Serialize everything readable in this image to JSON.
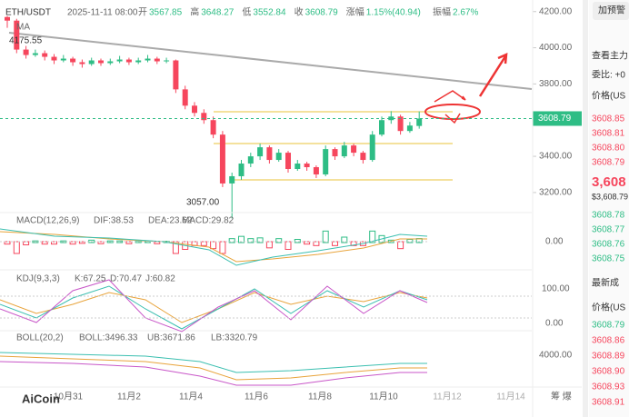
{
  "header": {
    "symbol": "ETH/USDT",
    "time": "2025-11-11 08:00",
    "fields": [
      [
        "开",
        "3567.85"
      ],
      [
        "高",
        "3648.27"
      ],
      [
        "低",
        "3552.84"
      ],
      [
        "收",
        "3608.79"
      ],
      [
        "涨幅",
        "1.15%(40.94)"
      ],
      [
        "振幅",
        "2.67%"
      ]
    ]
  },
  "chart_data": {
    "type": "candlestick",
    "ma_label": "MA",
    "high_label": "4175.55",
    "low_label": "3057.00",
    "last_price": 3608.79,
    "last_price_label": "3608.79",
    "up_color": "#2ebd85",
    "down_color": "#f6465d",
    "ylim": [
      3089,
      4264
    ],
    "yticks": [
      {
        "value": 4200,
        "label": "4200.00"
      },
      {
        "value": 4000,
        "label": "4000.00"
      },
      {
        "value": 3800,
        "label": "3800.00"
      },
      {
        "value": 3400,
        "label": "3400.00"
      },
      {
        "value": 3200,
        "label": "3200.00"
      }
    ],
    "x_labels": [
      "10月31",
      "11月2",
      "11月4",
      "11月6",
      "11月8",
      "11月10",
      "11月12",
      "11月14"
    ],
    "candles": [
      [
        4170,
        4175.55,
        4110,
        4150
      ],
      [
        4150,
        4160,
        3970,
        3990
      ],
      [
        3990,
        4010,
        3940,
        3960
      ],
      [
        3960,
        3990,
        3950,
        3970
      ],
      [
        3970,
        3985,
        3930,
        3950
      ],
      [
        3950,
        3965,
        3910,
        3930
      ],
      [
        3930,
        3960,
        3920,
        3940
      ],
      [
        3940,
        3950,
        3900,
        3920
      ],
      [
        3920,
        3935,
        3890,
        3910
      ],
      [
        3910,
        3945,
        3900,
        3930
      ],
      [
        3930,
        3940,
        3900,
        3915
      ],
      [
        3915,
        3940,
        3905,
        3925
      ],
      [
        3925,
        3955,
        3915,
        3935
      ],
      [
        3935,
        3945,
        3905,
        3920
      ],
      [
        3920,
        3945,
        3910,
        3930
      ],
      [
        3930,
        3960,
        3920,
        3940
      ],
      [
        3940,
        3950,
        3910,
        3925
      ],
      [
        3925,
        3945,
        3915,
        3930
      ],
      [
        3930,
        3935,
        3750,
        3770
      ],
      [
        3770,
        3790,
        3660,
        3680
      ],
      [
        3680,
        3700,
        3620,
        3640
      ],
      [
        3640,
        3660,
        3580,
        3600
      ],
      [
        3600,
        3620,
        3500,
        3520
      ],
      [
        3520,
        3540,
        3230,
        3250
      ],
      [
        3250,
        3310,
        3057,
        3290
      ],
      [
        3290,
        3380,
        3270,
        3360
      ],
      [
        3360,
        3420,
        3340,
        3400
      ],
      [
        3400,
        3470,
        3380,
        3450
      ],
      [
        3450,
        3460,
        3360,
        3380
      ],
      [
        3380,
        3440,
        3370,
        3420
      ],
      [
        3420,
        3430,
        3310,
        3330
      ],
      [
        3330,
        3380,
        3320,
        3360
      ],
      [
        3360,
        3370,
        3320,
        3340
      ],
      [
        3340,
        3350,
        3280,
        3300
      ],
      [
        3300,
        3460,
        3290,
        3440
      ],
      [
        3440,
        3450,
        3380,
        3400
      ],
      [
        3400,
        3480,
        3390,
        3460
      ],
      [
        3460,
        3470,
        3400,
        3420
      ],
      [
        3420,
        3430,
        3360,
        3380
      ],
      [
        3380,
        3540,
        3370,
        3520
      ],
      [
        3520,
        3620,
        3510,
        3600
      ],
      [
        3600,
        3650,
        3580,
        3620
      ],
      [
        3620,
        3630,
        3520,
        3540
      ],
      [
        3540,
        3590,
        3530,
        3570
      ],
      [
        3567.85,
        3648.27,
        3552.84,
        3608.79
      ]
    ]
  },
  "macd": {
    "label": "MACD(12,26,9)",
    "dif": "DIF:38.53",
    "dea": "DEA:23.62",
    "macd": "MACD:29.82",
    "axis": "0.00"
  },
  "kdj": {
    "label": "KDJ(9,3,3)",
    "k": "K:67.25",
    "d": "D:70.47",
    "j": "J:60.82",
    "axis_top": "100.00",
    "axis_bottom": "0.00"
  },
  "boll": {
    "label": "BOLL(20,2)",
    "boll": "BOLL:3496.33",
    "ub": "UB:3671.86",
    "lb": "LB:3320.79",
    "axis": "4000.00"
  },
  "logo": "AiCoin",
  "corner": "筹 爆",
  "side": {
    "button": "加预警",
    "title": "查看主力",
    "ratio": "委比: +0",
    "price_head": "价格(US",
    "asks": [
      "3608.85",
      "3608.81",
      "3608.80",
      "3608.79"
    ],
    "big": "3,608",
    "usd": "$3,608.79",
    "bids": [
      "3608.78",
      "3608.77",
      "3608.76",
      "3608.75"
    ],
    "trades_title": "最新成",
    "trades_head": "价格(US",
    "trades": [
      "3608.79",
      "3608.86",
      "3608.89",
      "3608.90",
      "3608.93",
      "3608.91"
    ]
  }
}
